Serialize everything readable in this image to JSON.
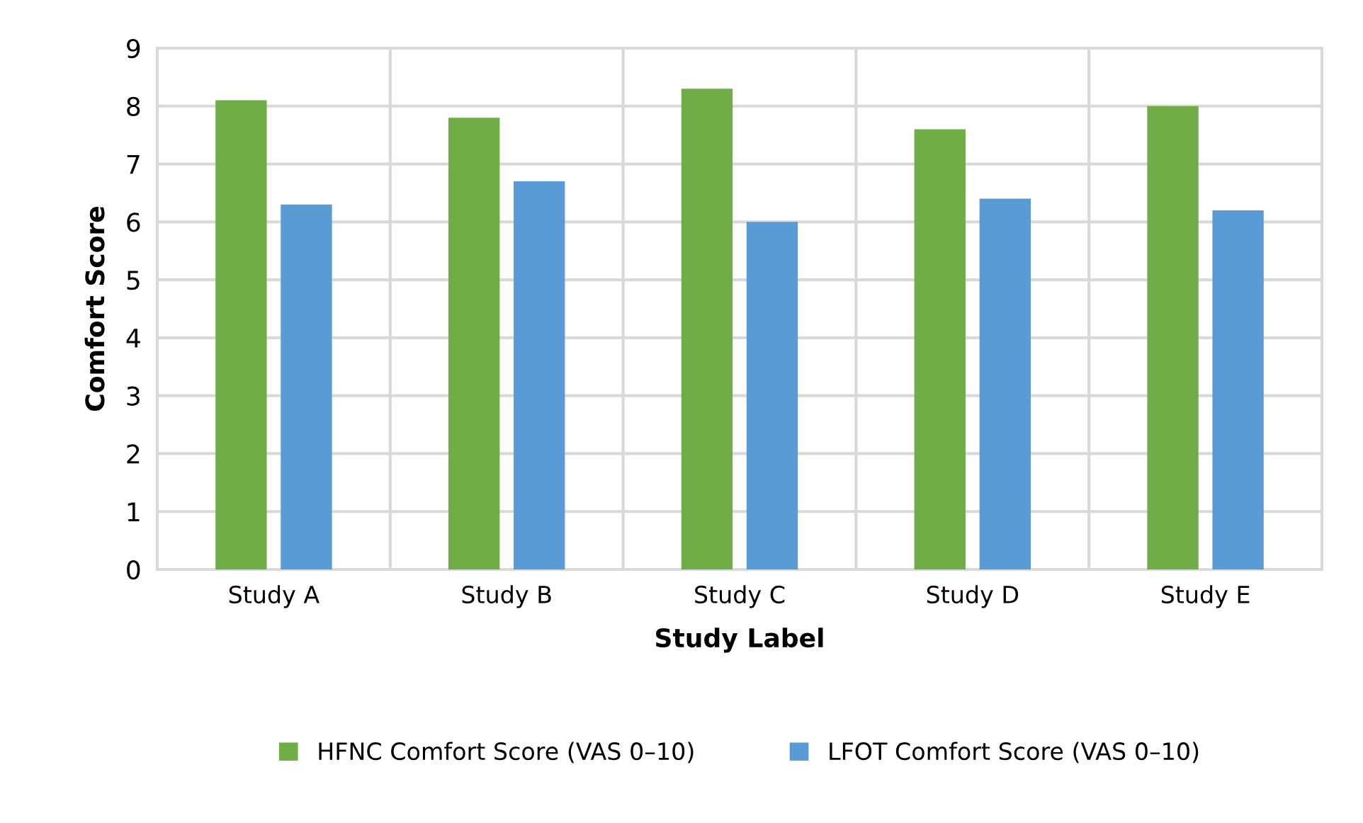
{
  "chart_data": {
    "type": "bar",
    "xlabel": "Study Label",
    "ylabel": "Comfort Score",
    "categories": [
      "Study A",
      "Study B",
      "Study C",
      "Study D",
      "Study E"
    ],
    "series": [
      {
        "name": "HFNC Comfort Score (VAS 0–10)",
        "color": "#70ad47",
        "values": [
          8.1,
          7.8,
          8.3,
          7.6,
          8.0
        ]
      },
      {
        "name": "LFOT Comfort Score (VAS 0–10)",
        "color": "#5b9bd5",
        "values": [
          6.3,
          6.7,
          6.0,
          6.4,
          6.2
        ]
      }
    ],
    "ylim": [
      0,
      9
    ],
    "yticks": [
      0,
      1,
      2,
      3,
      4,
      5,
      6,
      7,
      8,
      9
    ],
    "grid": true,
    "legend": "bottom"
  }
}
